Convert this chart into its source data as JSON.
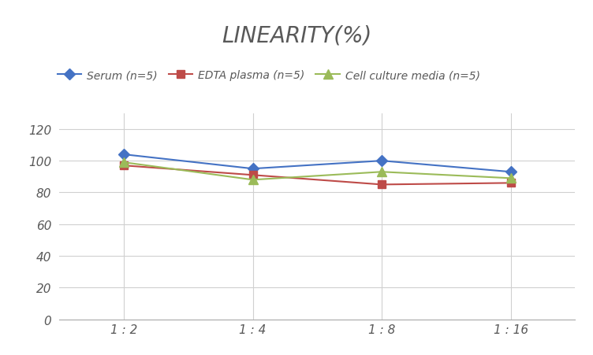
{
  "title": "LINEARITY(%)",
  "x_labels": [
    "1 : 2",
    "1 : 4",
    "1 : 8",
    "1 : 16"
  ],
  "x_positions": [
    0,
    1,
    2,
    3
  ],
  "series": [
    {
      "label": "Serum (n=5)",
      "values": [
        104,
        95,
        100,
        93
      ],
      "color": "#4472C4",
      "marker": "D",
      "markersize": 7,
      "linewidth": 1.5
    },
    {
      "label": "EDTA plasma (n=5)",
      "values": [
        97,
        91,
        85,
        86
      ],
      "color": "#BE4B48",
      "marker": "s",
      "markersize": 7,
      "linewidth": 1.5
    },
    {
      "label": "Cell culture media (n=5)",
      "values": [
        99,
        88,
        93,
        89
      ],
      "color": "#9BBB59",
      "marker": "^",
      "markersize": 8,
      "linewidth": 1.5
    }
  ],
  "ylim": [
    0,
    130
  ],
  "yticks": [
    0,
    20,
    40,
    60,
    80,
    100,
    120
  ],
  "grid_color": "#d0d0d0",
  "background_color": "#ffffff",
  "title_fontsize": 20,
  "legend_fontsize": 10,
  "tick_fontsize": 11,
  "title_color": "#595959"
}
